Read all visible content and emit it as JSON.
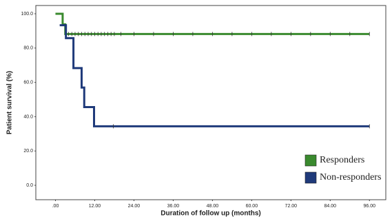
{
  "chart_data": {
    "type": "step",
    "x_label": "Duration of follow up (months)",
    "y_label": "Patient survival (%)",
    "xlim": [
      -6,
      101
    ],
    "ylim": [
      -8.4,
      104.8
    ],
    "xticks": [
      {
        "value": 0,
        "label": ".00"
      },
      {
        "value": 12,
        "label": "12.00"
      },
      {
        "value": 24,
        "label": "24.00"
      },
      {
        "value": 36,
        "label": "36.00"
      },
      {
        "value": 48,
        "label": "48.00"
      },
      {
        "value": 60,
        "label": "60.00"
      },
      {
        "value": 72,
        "label": "72.00"
      },
      {
        "value": 84,
        "label": "84.00"
      },
      {
        "value": 96,
        "label": "96.00"
      }
    ],
    "yticks": [
      {
        "value": 0,
        "label": "0.0"
      },
      {
        "value": 20,
        "label": "20.0"
      },
      {
        "value": 40,
        "label": "40.0"
      },
      {
        "value": 60,
        "label": "60.0"
      },
      {
        "value": 80,
        "label": "80.0"
      },
      {
        "value": 100,
        "label": "100.0"
      }
    ],
    "legend": "bottom-right",
    "series": [
      {
        "name": "Responders",
        "color": "#3a8a2e",
        "x": [
          0,
          2.2,
          3,
          96
        ],
        "values": [
          100,
          93.8,
          88.2,
          88.2
        ],
        "censored": [
          4,
          5,
          6,
          7,
          8,
          9,
          10,
          11,
          12,
          13,
          14,
          15,
          16,
          17,
          18,
          20,
          24,
          30,
          36,
          42,
          48,
          54,
          60,
          66,
          72,
          78,
          84,
          90,
          96
        ]
      },
      {
        "name": "Non-responders",
        "color": "#1f3a7a",
        "x": [
          1.3,
          3.2,
          5.5,
          8,
          8.8,
          11.8,
          96
        ],
        "values": [
          93.3,
          85.8,
          68.3,
          57,
          45.6,
          34.4,
          34.4
        ],
        "censored": [
          17.7,
          96
        ]
      }
    ]
  }
}
